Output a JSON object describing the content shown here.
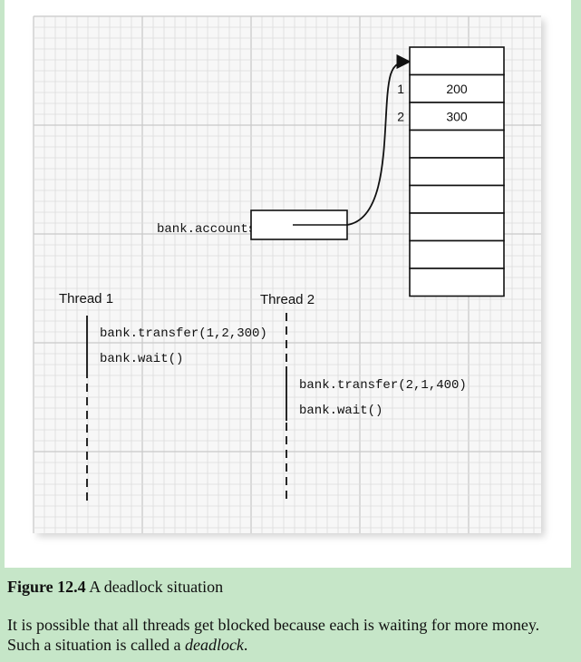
{
  "figure": {
    "label": "Figure 12.4",
    "title": "A deadlock situation"
  },
  "paragraph": {
    "text_before": "It is possible that all threads get blocked because each is waiting for more money. Such a situation is called a ",
    "term": "deadlock",
    "text_after": "."
  },
  "diagram": {
    "reference_label": "bank.accounts",
    "array": {
      "rows": [
        {
          "index": "",
          "value": ""
        },
        {
          "index": "1",
          "value": "200"
        },
        {
          "index": "2",
          "value": "300"
        },
        {
          "index": "",
          "value": ""
        },
        {
          "index": "",
          "value": ""
        },
        {
          "index": "",
          "value": ""
        },
        {
          "index": "",
          "value": ""
        },
        {
          "index": "",
          "value": ""
        },
        {
          "index": "",
          "value": ""
        }
      ]
    },
    "threads": [
      {
        "name": "Thread 1",
        "calls": [
          "bank.transfer(1,2,300)",
          "bank.wait()"
        ]
      },
      {
        "name": "Thread 2",
        "calls": [
          "bank.transfer(2,1,400)",
          "bank.wait()"
        ]
      }
    ]
  },
  "colors": {
    "page_background": "#c6e6c8",
    "grid_line": "#dcdcdc",
    "grid_major": "#c8c8c8",
    "ink": "#111111"
  }
}
